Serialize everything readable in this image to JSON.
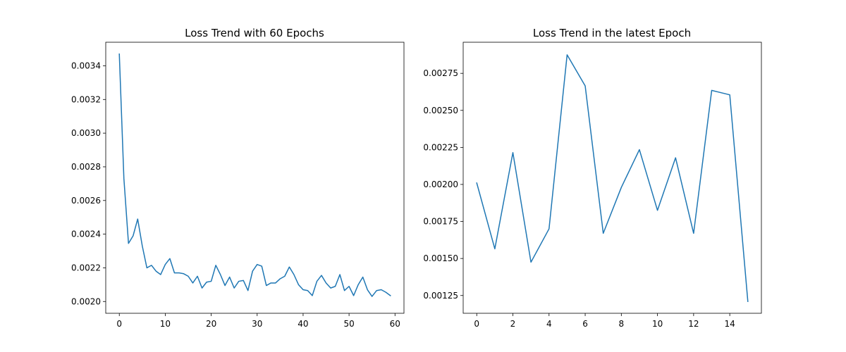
{
  "chart_data": [
    {
      "type": "line",
      "title": "Loss Trend with 60 Epochs",
      "xlabel": "",
      "ylabel": "",
      "xlim": [
        -2.95,
        61.95
      ],
      "ylim": [
        0.00193,
        0.00354
      ],
      "xticks": [
        0,
        10,
        20,
        30,
        40,
        50,
        60
      ],
      "xtick_labels": [
        "0",
        "10",
        "20",
        "30",
        "40",
        "50",
        "60"
      ],
      "yticks": [
        0.002,
        0.0022,
        0.0024,
        0.0026,
        0.0028,
        0.003,
        0.0032,
        0.0034
      ],
      "ytick_labels": [
        "0.0020",
        "0.0022",
        "0.0024",
        "0.0026",
        "0.0028",
        "0.0030",
        "0.0032",
        "0.0034"
      ],
      "grid": false,
      "line_color": "#1f77b4",
      "x": [
        0,
        1,
        2,
        3,
        4,
        5,
        6,
        7,
        8,
        9,
        10,
        11,
        12,
        13,
        14,
        15,
        16,
        17,
        18,
        19,
        20,
        21,
        22,
        23,
        24,
        25,
        26,
        27,
        28,
        29,
        30,
        31,
        32,
        33,
        34,
        35,
        36,
        37,
        38,
        39,
        40,
        41,
        42,
        43,
        44,
        45,
        46,
        47,
        48,
        49,
        50,
        51,
        52,
        53,
        54,
        55,
        56,
        57,
        58,
        59
      ],
      "values": [
        0.00347,
        0.00273,
        0.002345,
        0.00239,
        0.00249,
        0.00233,
        0.0022,
        0.002215,
        0.00218,
        0.00216,
        0.00222,
        0.002255,
        0.00217,
        0.00217,
        0.002165,
        0.00215,
        0.00211,
        0.00215,
        0.00208,
        0.002115,
        0.00212,
        0.002215,
        0.00216,
        0.002095,
        0.002145,
        0.00208,
        0.00212,
        0.002125,
        0.002065,
        0.00218,
        0.00222,
        0.00221,
        0.002095,
        0.00211,
        0.00211,
        0.002135,
        0.00215,
        0.002205,
        0.00216,
        0.0021,
        0.00207,
        0.002065,
        0.002035,
        0.00212,
        0.002155,
        0.00211,
        0.00208,
        0.00209,
        0.00216,
        0.002065,
        0.00209,
        0.002035,
        0.0021,
        0.002145,
        0.00207,
        0.00203,
        0.002065,
        0.00207,
        0.002055,
        0.002035
      ]
    },
    {
      "type": "line",
      "title": "Loss Trend in the latest Epoch",
      "xlabel": "",
      "ylabel": "",
      "xlim": [
        -0.75,
        15.75
      ],
      "ylim": [
        0.00113,
        0.00296
      ],
      "xticks": [
        0,
        2,
        4,
        6,
        8,
        10,
        12,
        14
      ],
      "xtick_labels": [
        "0",
        "2",
        "4",
        "6",
        "8",
        "10",
        "12",
        "14"
      ],
      "yticks": [
        0.00125,
        0.0015,
        0.00175,
        0.002,
        0.00225,
        0.0025,
        0.00275
      ],
      "ytick_labels": [
        "0.00125",
        "0.00150",
        "0.00175",
        "0.00200",
        "0.00225",
        "0.00250",
        "0.00275"
      ],
      "grid": false,
      "line_color": "#1f77b4",
      "x": [
        0,
        1,
        2,
        3,
        4,
        5,
        6,
        7,
        8,
        9,
        10,
        11,
        12,
        13,
        14,
        15
      ],
      "values": [
        0.00201,
        0.001565,
        0.002215,
        0.001475,
        0.0017,
        0.002875,
        0.002665,
        0.00167,
        0.00198,
        0.002235,
        0.001825,
        0.00218,
        0.00167,
        0.002635,
        0.002605,
        0.00121
      ]
    }
  ]
}
